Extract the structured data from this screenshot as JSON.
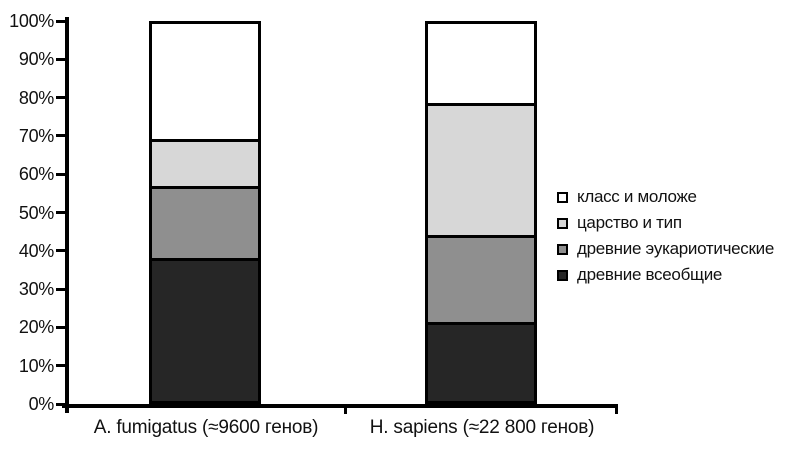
{
  "chart_data": {
    "type": "bar",
    "stacked": true,
    "percent_stacked": true,
    "title": "",
    "xlabel": "",
    "ylabel": "",
    "ylim": [
      0,
      100
    ],
    "grid": false,
    "legend_position": "right",
    "categories": [
      "A. fumigatus (≈9600 генов)",
      "H. sapiens (≈22 800 генов)"
    ],
    "y_ticks": [
      "100%",
      "90%",
      "80%",
      "70%",
      "60%",
      "50%",
      "40%",
      "30%",
      "20%",
      "10%",
      "0%"
    ],
    "series": [
      {
        "name": "класс и моложе",
        "color": "#ffffff",
        "values": [
          30.5,
          21
        ]
      },
      {
        "name": "царство и тип",
        "color": "#d7d7d7",
        "values": [
          12.5,
          35
        ]
      },
      {
        "name": "древние эукариотические",
        "color": "#8f8f8f",
        "values": [
          19,
          23
        ]
      },
      {
        "name": "древние всеобщие",
        "color": "#262626",
        "values": [
          38,
          21
        ]
      }
    ],
    "colors": {
      "axis": "#000000",
      "text": "#111111",
      "background": "#ffffff"
    }
  }
}
